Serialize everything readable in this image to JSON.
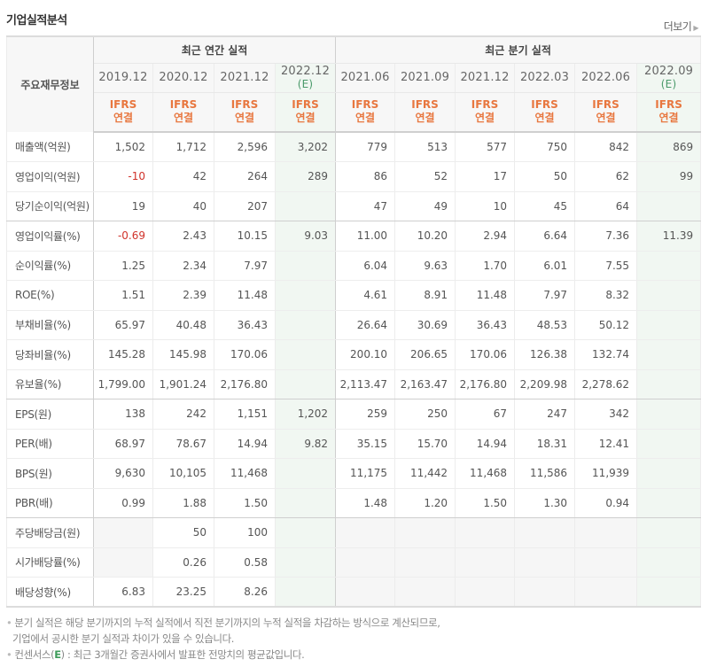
{
  "header": {
    "title": "기업실적분석",
    "more_label": "더보기",
    "more_icon": "triangle-right-icon"
  },
  "table": {
    "row_header_label": "주요재무정보",
    "groups": {
      "annual": "최근 연간 실적",
      "quarterly": "최근 분기 실적"
    },
    "periods": [
      {
        "date": "2019.12",
        "estimate": "",
        "basis_line1": "IFRS",
        "basis_line2": "연결"
      },
      {
        "date": "2020.12",
        "estimate": "",
        "basis_line1": "IFRS",
        "basis_line2": "연결"
      },
      {
        "date": "2021.12",
        "estimate": "",
        "basis_line1": "IFRS",
        "basis_line2": "연결"
      },
      {
        "date": "2022.12",
        "estimate": "(E)",
        "basis_line1": "IFRS",
        "basis_line2": "연결"
      },
      {
        "date": "2021.06",
        "estimate": "",
        "basis_line1": "IFRS",
        "basis_line2": "연결"
      },
      {
        "date": "2021.09",
        "estimate": "",
        "basis_line1": "IFRS",
        "basis_line2": "연결"
      },
      {
        "date": "2021.12",
        "estimate": "",
        "basis_line1": "IFRS",
        "basis_line2": "연결"
      },
      {
        "date": "2022.03",
        "estimate": "",
        "basis_line1": "IFRS",
        "basis_line2": "연결"
      },
      {
        "date": "2022.06",
        "estimate": "",
        "basis_line1": "IFRS",
        "basis_line2": "연결"
      },
      {
        "date": "2022.09",
        "estimate": "(E)",
        "basis_line1": "IFRS",
        "basis_line2": "연결"
      }
    ],
    "rows": [
      {
        "label": "매출액(억원)",
        "values": [
          "1,502",
          "1,712",
          "2,596",
          "3,202",
          "779",
          "513",
          "577",
          "750",
          "842",
          "869"
        ]
      },
      {
        "label": "영업이익(억원)",
        "values": [
          "-10",
          "42",
          "264",
          "289",
          "86",
          "52",
          "17",
          "50",
          "62",
          "99"
        ]
      },
      {
        "label": "당기순이익(억원)",
        "values": [
          "19",
          "40",
          "207",
          "",
          "47",
          "49",
          "10",
          "45",
          "64",
          ""
        ]
      },
      {
        "label": "영업이익률(%)",
        "values": [
          "-0.69",
          "2.43",
          "10.15",
          "9.03",
          "11.00",
          "10.20",
          "2.94",
          "6.64",
          "7.36",
          "11.39"
        ]
      },
      {
        "label": "순이익률(%)",
        "values": [
          "1.25",
          "2.34",
          "7.97",
          "",
          "6.04",
          "9.63",
          "1.70",
          "6.01",
          "7.55",
          ""
        ]
      },
      {
        "label": "ROE(%)",
        "values": [
          "1.51",
          "2.39",
          "11.48",
          "",
          "4.61",
          "8.91",
          "11.48",
          "7.97",
          "8.32",
          ""
        ]
      },
      {
        "label": "부채비율(%)",
        "values": [
          "65.97",
          "40.48",
          "36.43",
          "",
          "26.64",
          "30.69",
          "36.43",
          "48.53",
          "50.12",
          ""
        ]
      },
      {
        "label": "당좌비율(%)",
        "values": [
          "145.28",
          "145.98",
          "170.06",
          "",
          "200.10",
          "206.65",
          "170.06",
          "126.38",
          "132.74",
          ""
        ]
      },
      {
        "label": "유보율(%)",
        "values": [
          "1,799.00",
          "1,901.24",
          "2,176.80",
          "",
          "2,113.47",
          "2,163.47",
          "2,176.80",
          "2,209.98",
          "2,278.62",
          ""
        ]
      },
      {
        "label": "EPS(원)",
        "values": [
          "138",
          "242",
          "1,151",
          "1,202",
          "259",
          "250",
          "67",
          "247",
          "342",
          ""
        ]
      },
      {
        "label": "PER(배)",
        "values": [
          "68.97",
          "78.67",
          "14.94",
          "9.82",
          "35.15",
          "15.70",
          "14.94",
          "18.31",
          "12.41",
          ""
        ]
      },
      {
        "label": "BPS(원)",
        "values": [
          "9,630",
          "10,105",
          "11,468",
          "",
          "11,175",
          "11,442",
          "11,468",
          "11,586",
          "11,939",
          ""
        ]
      },
      {
        "label": "PBR(배)",
        "values": [
          "0.99",
          "1.88",
          "1.50",
          "",
          "1.48",
          "1.20",
          "1.50",
          "1.30",
          "0.94",
          ""
        ]
      },
      {
        "label": "주당배당금(원)",
        "values": [
          "",
          "50",
          "100",
          "",
          "",
          "",
          "",
          "",
          "",
          ""
        ]
      },
      {
        "label": "시가배당률(%)",
        "values": [
          "",
          "0.26",
          "0.58",
          "",
          "",
          "",
          "",
          "",
          "",
          ""
        ]
      },
      {
        "label": "배당성향(%)",
        "values": [
          "6.83",
          "23.25",
          "8.26",
          "",
          "",
          "",
          "",
          "",
          "",
          ""
        ]
      }
    ]
  },
  "notes": {
    "line1": "분기 실적은 해당 분기까지의 누적 실적에서 직전 분기까지의 누적 실적을 차감하는 방식으로 계산되므로,",
    "line2": "기업에서 공시한 분기 실적과 차이가 있을 수 있습니다.",
    "line3_prefix": "컨센서스(",
    "line3_e": "E",
    "line3_suffix": ") : 최근 3개월간 증권사에서 발표한 전망치의 평균값입니다."
  },
  "colors": {
    "ifrs_orange": "#e8773f",
    "estimate_bg": "#f1f7f2",
    "estimate_text": "#4a9a6a",
    "negative_red": "#d0332b"
  }
}
